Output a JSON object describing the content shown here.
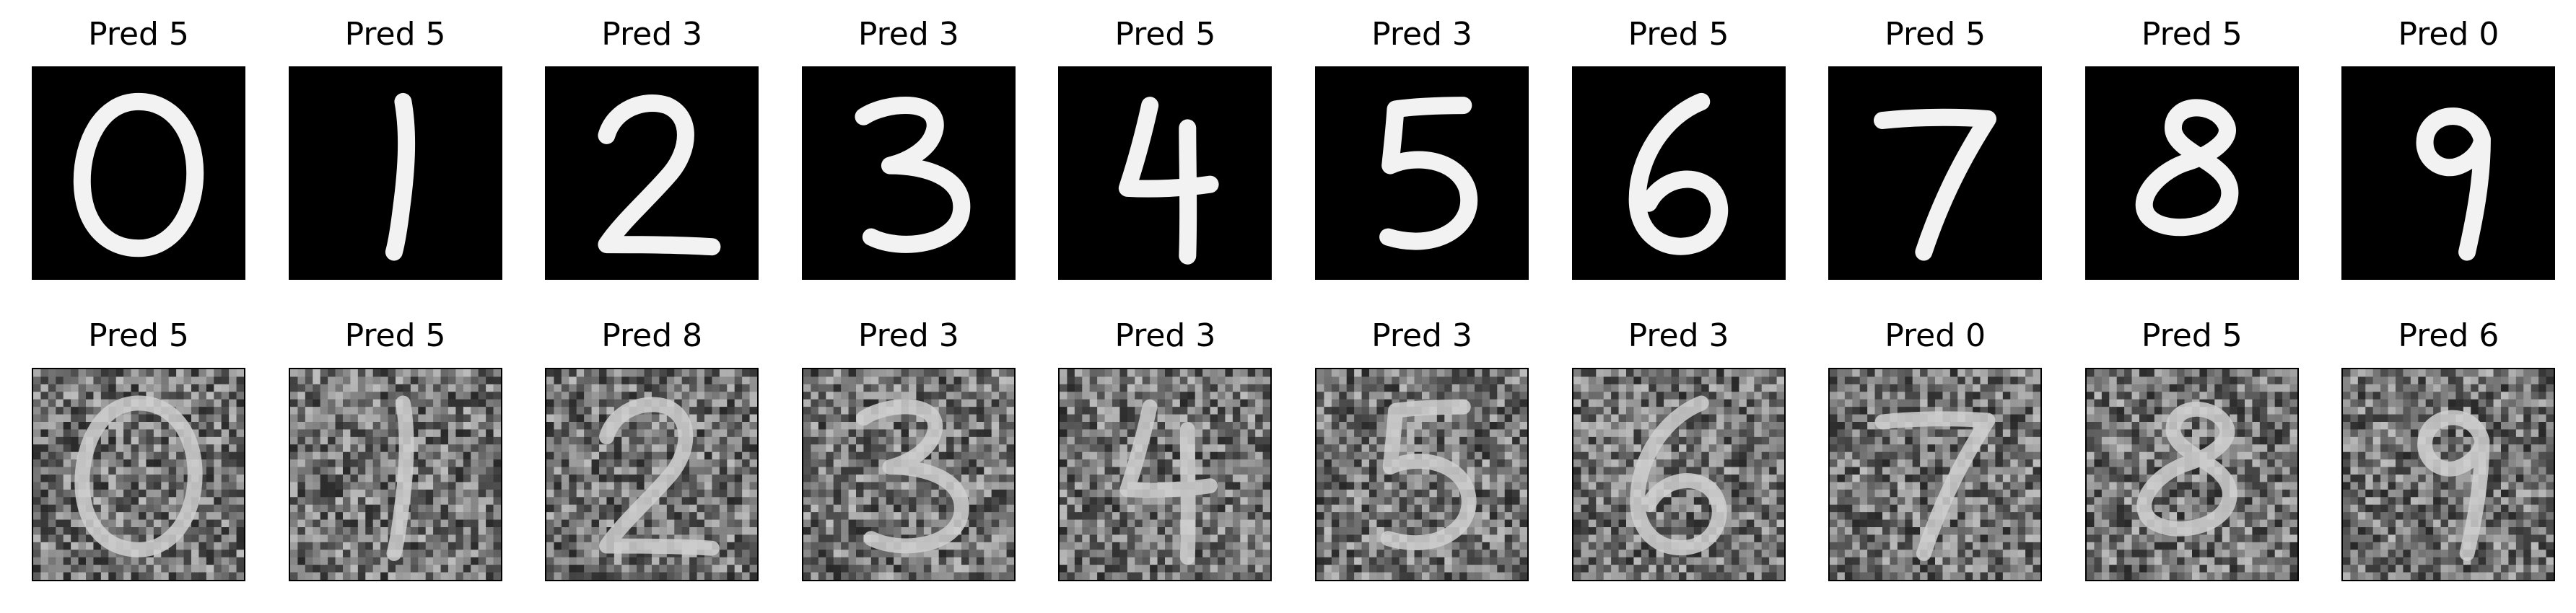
{
  "figure": {
    "rows": [
      {
        "name": "clean",
        "panels": [
          {
            "title": "Pred 5",
            "digit": "0"
          },
          {
            "title": "Pred 5",
            "digit": "1"
          },
          {
            "title": "Pred 3",
            "digit": "2"
          },
          {
            "title": "Pred 3",
            "digit": "3"
          },
          {
            "title": "Pred 5",
            "digit": "4"
          },
          {
            "title": "Pred 3",
            "digit": "5"
          },
          {
            "title": "Pred 5",
            "digit": "6"
          },
          {
            "title": "Pred 5",
            "digit": "7"
          },
          {
            "title": "Pred 5",
            "digit": "8"
          },
          {
            "title": "Pred 0",
            "digit": "9"
          }
        ]
      },
      {
        "name": "noisy",
        "panels": [
          {
            "title": "Pred 5",
            "digit": "0"
          },
          {
            "title": "Pred 5",
            "digit": "1"
          },
          {
            "title": "Pred 8",
            "digit": "2"
          },
          {
            "title": "Pred 3",
            "digit": "3"
          },
          {
            "title": "Pred 3",
            "digit": "4"
          },
          {
            "title": "Pred 3",
            "digit": "5"
          },
          {
            "title": "Pred 3",
            "digit": "6"
          },
          {
            "title": "Pred 0",
            "digit": "7"
          },
          {
            "title": "Pred 5",
            "digit": "8"
          },
          {
            "title": "Pred 6",
            "digit": "9"
          }
        ]
      }
    ]
  },
  "colors": {
    "background": "#ffffff",
    "clean_ink": "#f2f2f2",
    "noisy_ink": "#d0d0d0",
    "noise_base": "#6a6a6a",
    "frame": "#000000"
  }
}
